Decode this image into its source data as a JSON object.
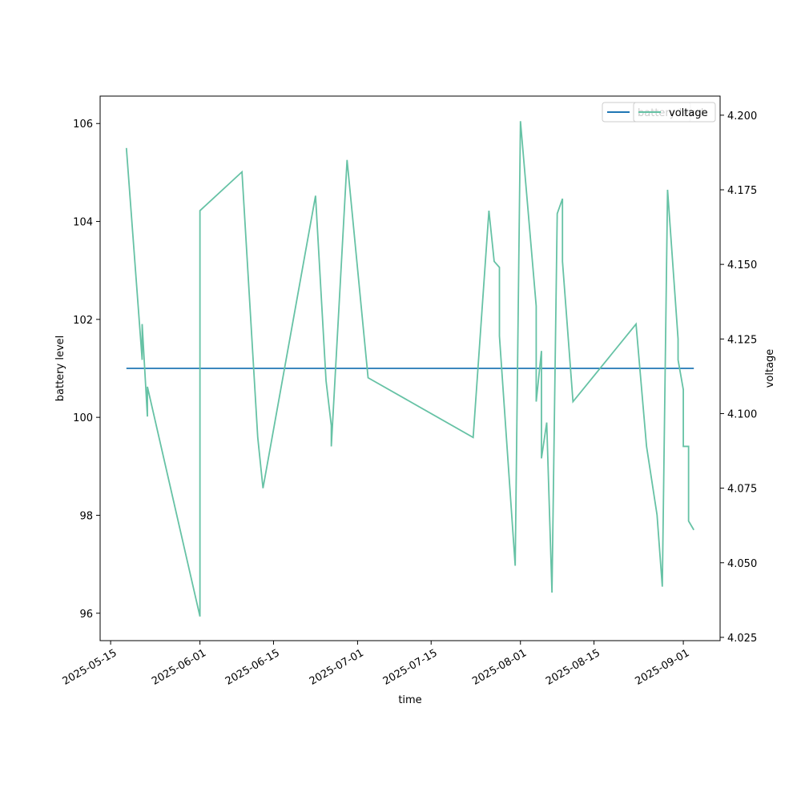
{
  "chart_data": {
    "type": "line",
    "xlabel": "time",
    "ylabel": "battery level",
    "y2label": "voltage",
    "legend": "upper right",
    "xlim": [
      "2025-05-13",
      "2025-09-08"
    ],
    "xticks": [
      "2025-05-15",
      "2025-06-01",
      "2025-06-15",
      "2025-07-01",
      "2025-07-15",
      "2025-08-01",
      "2025-08-15",
      "2025-09-01"
    ],
    "ylim": [
      95.44,
      106.56
    ],
    "yticks": [
      96,
      98,
      100,
      102,
      104,
      106
    ],
    "y2lim": [
      4.0239,
      4.2064
    ],
    "y2ticks": [
      4.025,
      {
        "value": 4.05,
        "label": "4.050"
      },
      4.075,
      {
        "value": 4.1,
        "label": "4.100"
      },
      4.125,
      {
        "value": 4.15,
        "label": "4.150"
      },
      4.175,
      {
        "value": 4.2,
        "label": "4.200"
      }
    ],
    "series": [
      {
        "name": "battery level",
        "color": "#1f77b4",
        "x": [
          "2025-05-18",
          "2025-09-03"
        ],
        "values": [
          101,
          101
        ]
      },
      {
        "name": "voltage",
        "color": "#66c2a5",
        "axis": "y2",
        "x": [
          "2025-05-18",
          "2025-05-21",
          "2025-05-21",
          "2025-05-22",
          "2025-05-22",
          "2025-06-01",
          "2025-06-01",
          "2025-06-09",
          "2025-06-12",
          "2025-06-13",
          "2025-06-23",
          "2025-06-25",
          "2025-06-26",
          "2025-06-26",
          "2025-06-29",
          "2025-07-03",
          "2025-07-23",
          "2025-07-26",
          "2025-07-27",
          "2025-07-28",
          "2025-07-28",
          "2025-07-31",
          "2025-08-01",
          "2025-08-04",
          "2025-08-04",
          "2025-08-05",
          "2025-08-05",
          "2025-08-06",
          "2025-08-07",
          "2025-08-08",
          "2025-08-09",
          "2025-08-09",
          "2025-08-11",
          "2025-08-23",
          "2025-08-25",
          "2025-08-27",
          "2025-08-28",
          "2025-08-29",
          "2025-08-31",
          "2025-08-31",
          "2025-09-01",
          "2025-09-01",
          "2025-09-02",
          "2025-09-02",
          "2025-09-03"
        ],
        "values": [
          4.189,
          4.118,
          4.13,
          4.099,
          4.109,
          4.032,
          4.168,
          4.181,
          4.092,
          4.075,
          4.173,
          4.111,
          4.096,
          4.089,
          4.185,
          4.112,
          4.092,
          4.168,
          4.151,
          4.149,
          4.126,
          4.049,
          4.198,
          4.136,
          4.104,
          4.121,
          4.085,
          4.097,
          4.04,
          4.167,
          4.172,
          4.151,
          4.104,
          4.13,
          4.089,
          4.066,
          4.042,
          4.175,
          4.125,
          4.118,
          4.108,
          4.089,
          4.089,
          4.064,
          4.061
        ]
      }
    ]
  }
}
